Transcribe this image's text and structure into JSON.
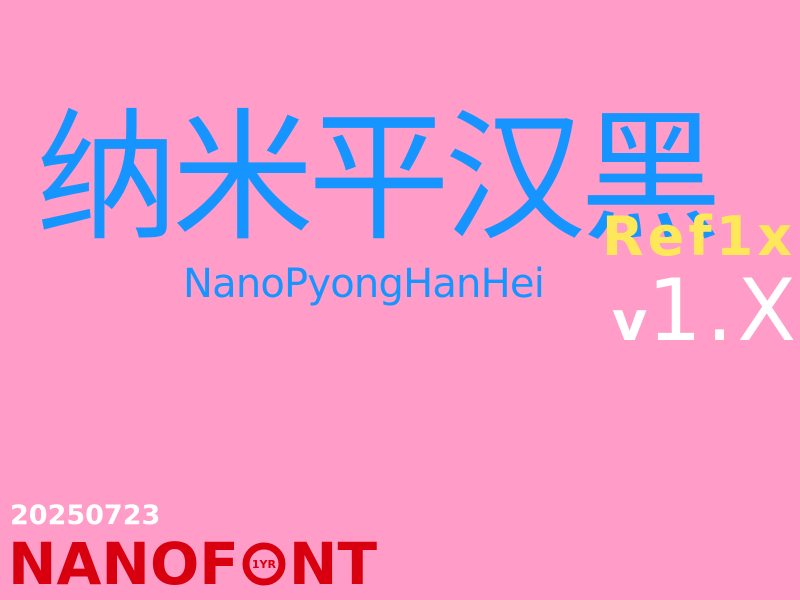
{
  "title": {
    "cjk": "纳米平汉黑",
    "latin": "NanoPyongHanHei"
  },
  "edition": {
    "tag": "Ref1x",
    "version_prefix": "v",
    "version_number": "1.X"
  },
  "date": "20250723",
  "brand": {
    "prefix": "NANOF",
    "badge": "1YR",
    "suffix": "NT"
  },
  "colors": {
    "background": "#ff9cc8",
    "title": "#1694ff",
    "tag": "#ffe75a",
    "version": "#ffffff",
    "brand": "#d8000f"
  }
}
